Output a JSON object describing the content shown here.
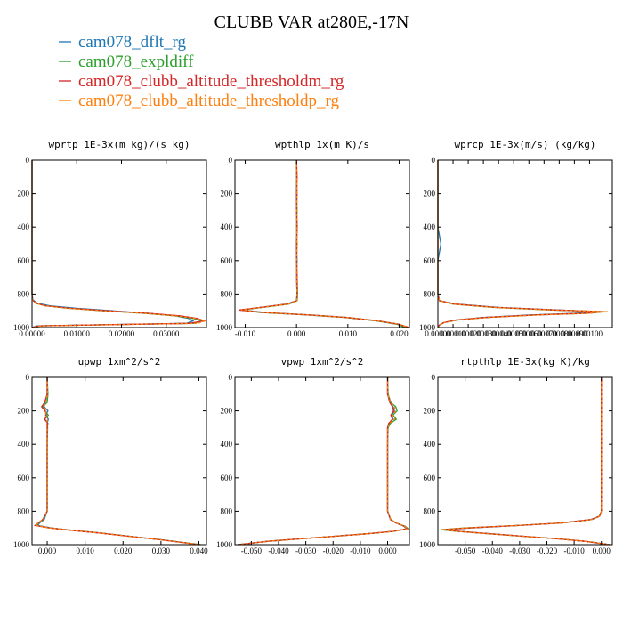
{
  "figure": {
    "title": "CLUBB VAR at280E,-17N",
    "legend": [
      {
        "label": "cam078_dflt_rg",
        "color": "#1f77b4"
      },
      {
        "label": "cam078_expldiff",
        "color": "#2ca02c"
      },
      {
        "label": "cam078_clubb_altitude_thresholdm_rg",
        "color": "#d62728"
      },
      {
        "label": "cam078_clubb_altitude_thresholdp_rg",
        "color": "#ff7f0e"
      }
    ]
  },
  "chart_data": [
    {
      "type": "line",
      "title": "wprtp  1E-3x(m kg)/(s kg)",
      "xlim": [
        0,
        0.039
      ],
      "ylim": [
        1000,
        0
      ],
      "xticks": [
        0,
        0.01,
        0.02,
        0.03
      ],
      "xtick_labels": [
        "0.00000",
        "0.01000",
        "0.02000",
        "0.03000"
      ],
      "yticks": [
        0,
        200,
        400,
        600,
        800,
        1000
      ],
      "ytick_labels": [
        "0",
        "200",
        "400",
        "600",
        "800",
        "1000"
      ],
      "y": [
        0,
        200,
        400,
        600,
        800,
        835,
        855,
        870,
        885,
        900,
        915,
        930,
        945,
        960,
        975,
        990,
        1000
      ],
      "series": [
        {
          "name": "cam078_dflt_rg",
          "values": [
            0,
            0,
            0,
            0,
            0,
            0.0002,
            0.0012,
            0.004,
            0.01,
            0.018,
            0.026,
            0.032,
            0.035,
            0.036,
            0.0345,
            0.001,
            0
          ]
        },
        {
          "name": "cam078_expldiff",
          "values": [
            0,
            0,
            0,
            0,
            0,
            0.0001,
            0.0008,
            0.003,
            0.008,
            0.016,
            0.025,
            0.032,
            0.036,
            0.038,
            0.036,
            0.002,
            0
          ]
        },
        {
          "name": "cam078_clubb_altitude_thresholdm_rg",
          "values": [
            0,
            0,
            0,
            0,
            0,
            0.0001,
            0.0009,
            0.003,
            0.0085,
            0.017,
            0.026,
            0.033,
            0.037,
            0.0385,
            0.035,
            0.0015,
            0
          ]
        },
        {
          "name": "cam078_clubb_altitude_thresholdp_rg",
          "values": [
            0,
            0,
            0,
            0,
            0,
            0.0001,
            0.0008,
            0.0028,
            0.008,
            0.016,
            0.025,
            0.032,
            0.0365,
            0.0388,
            0.037,
            0.002,
            0
          ]
        }
      ]
    },
    {
      "type": "line",
      "title": "wpthlp  1x(m K)/s",
      "xlim": [
        -0.012,
        0.022
      ],
      "ylim": [
        1000,
        0
      ],
      "xticks": [
        -0.01,
        0,
        0.01,
        0.02
      ],
      "xtick_labels": [
        "-0.010",
        "0.000",
        "0.010",
        "0.020"
      ],
      "yticks": [
        0,
        200,
        400,
        600,
        800,
        1000
      ],
      "ytick_labels": [
        "0",
        "200",
        "400",
        "600",
        "800",
        "1000"
      ],
      "y": [
        0,
        100,
        200,
        300,
        400,
        500,
        600,
        700,
        800,
        840,
        860,
        880,
        895,
        910,
        925,
        940,
        960,
        980,
        1000
      ],
      "series": [
        {
          "name": "cam078_dflt_rg",
          "values": [
            0,
            0,
            0.0001,
            0,
            0.0001,
            0,
            0.0001,
            0,
            0.0001,
            0,
            -0.002,
            -0.007,
            -0.0105,
            -0.006,
            0.003,
            0.01,
            0.016,
            0.02,
            0.0215
          ]
        },
        {
          "name": "cam078_expldiff",
          "values": [
            0,
            0,
            0,
            0.0001,
            0,
            0.0001,
            0,
            0.0001,
            0.0002,
            0.0001,
            -0.0015,
            -0.0065,
            -0.011,
            -0.007,
            0.002,
            0.0095,
            0.0155,
            0.0195,
            0.0212
          ]
        },
        {
          "name": "cam078_clubb_altitude_thresholdm_rg",
          "values": [
            0,
            0.0001,
            0,
            0,
            0.0001,
            0,
            0,
            0.0001,
            0.0001,
            0,
            -0.0018,
            -0.007,
            -0.0112,
            -0.0065,
            0.0025,
            0.0098,
            0.0158,
            0.0198,
            0.022
          ]
        },
        {
          "name": "cam078_clubb_altitude_thresholdp_rg",
          "values": [
            0,
            0,
            0.0001,
            0,
            0,
            0.0001,
            0,
            0,
            0.0001,
            0,
            -0.0016,
            -0.0068,
            -0.0108,
            -0.0062,
            0.0028,
            0.01,
            0.016,
            0.02,
            0.0218
          ]
        }
      ]
    },
    {
      "type": "line",
      "title": "wprcp  1E-3x(m/s) (kg/kg)",
      "xlim": [
        0,
        0.00115
      ],
      "ylim": [
        1000,
        0
      ],
      "xticks": [
        0,
        0.0001,
        0.0002,
        0.0003,
        0.0004,
        0.0005,
        0.0006,
        0.0007,
        0.0008,
        0.0009,
        0.001
      ],
      "xtick_labels": [
        "0.00000",
        "0.00010",
        "0.00020",
        "0.00030",
        "0.00040",
        "0.00050",
        "0.00060",
        "0.00070",
        "0.00080",
        "0.00090",
        "0.00100"
      ],
      "yticks": [
        0,
        200,
        400,
        600,
        800,
        1000
      ],
      "ytick_labels": [
        "0",
        "200",
        "400",
        "600",
        "800",
        "1000"
      ],
      "y": [
        0,
        200,
        400,
        500,
        600,
        800,
        840,
        860,
        880,
        895,
        905,
        915,
        925,
        940,
        955,
        970,
        985,
        1000
      ],
      "series": [
        {
          "name": "cam078_dflt_rg",
          "values": [
            0,
            0,
            0,
            2e-05,
            0,
            0,
            1e-05,
            0.00012,
            0.0004,
            0.0008,
            0.00105,
            0.0009,
            0.0006,
            0.0003,
            0.00012,
            4e-05,
            1e-05,
            0
          ]
        },
        {
          "name": "cam078_expldiff",
          "values": [
            0,
            0,
            0,
            0,
            0,
            0,
            1e-05,
            0.0001,
            0.00036,
            0.00075,
            0.0011,
            0.00098,
            0.00065,
            0.00032,
            0.00013,
            4e-05,
            1e-05,
            0
          ]
        },
        {
          "name": "cam078_clubb_altitude_thresholdm_rg",
          "values": [
            0,
            0,
            0,
            0,
            0,
            0,
            1e-05,
            0.00011,
            0.00038,
            0.00078,
            0.00108,
            0.00096,
            0.00063,
            0.00031,
            0.00012,
            4e-05,
            1e-05,
            0
          ]
        },
        {
          "name": "cam078_clubb_altitude_thresholdp_rg",
          "values": [
            0,
            0,
            0,
            0,
            0,
            0,
            1e-05,
            0.0001,
            0.00037,
            0.00077,
            0.00112,
            0.001,
            0.00066,
            0.00033,
            0.00013,
            4e-05,
            1e-05,
            0
          ]
        }
      ]
    },
    {
      "type": "line",
      "title": "upwp  1xm^2/s^2",
      "xlim": [
        -0.004,
        0.042
      ],
      "ylim": [
        1000,
        0
      ],
      "xticks": [
        0,
        0.01,
        0.02,
        0.03,
        0.04
      ],
      "xtick_labels": [
        "0.000",
        "0.010",
        "0.020",
        "0.030",
        "0.040"
      ],
      "yticks": [
        0,
        200,
        400,
        600,
        800,
        1000
      ],
      "ytick_labels": [
        "0",
        "200",
        "400",
        "600",
        "800",
        "1000"
      ],
      "y": [
        0,
        100,
        150,
        175,
        200,
        225,
        250,
        275,
        300,
        400,
        600,
        800,
        850,
        870,
        885,
        900,
        915,
        930,
        950,
        970,
        990,
        1000
      ],
      "series": [
        {
          "name": "cam078_dflt_rg",
          "values": [
            0,
            0,
            -0.0005,
            -0.0008,
            0.0002,
            -0.0004,
            0.0003,
            0,
            0.0001,
            0,
            0,
            0,
            -0.0008,
            -0.002,
            -0.0025,
            0.001,
            0.007,
            0.014,
            0.022,
            0.03,
            0.037,
            0.0405
          ]
        },
        {
          "name": "cam078_expldiff",
          "values": [
            0,
            0.0002,
            0,
            -0.0012,
            -0.0006,
            0.0003,
            -0.0007,
            0.0002,
            0,
            0,
            0,
            0,
            -0.001,
            -0.0022,
            -0.003,
            0.0008,
            0.0068,
            0.0138,
            0.0218,
            0.0298,
            0.0368,
            0.0402
          ]
        },
        {
          "name": "cam078_clubb_altitude_thresholdm_rg",
          "values": [
            0,
            0,
            -0.0007,
            -0.0015,
            -0.0005,
            -0.0002,
            -0.0006,
            0.0001,
            0,
            0,
            0,
            0,
            -0.0012,
            -0.0024,
            -0.0032,
            0.0006,
            0.0066,
            0.0136,
            0.0216,
            0.0296,
            0.0366,
            0.04
          ]
        },
        {
          "name": "cam078_clubb_altitude_thresholdp_rg",
          "values": [
            0,
            0.0001,
            -0.0004,
            -0.0009,
            -0.0002,
            -0.0005,
            0.0001,
            -0.0002,
            0,
            0,
            0,
            0,
            -0.0011,
            -0.0023,
            -0.0031,
            0.0007,
            0.0067,
            0.0137,
            0.0217,
            0.0297,
            0.0367,
            0.0403
          ]
        }
      ]
    },
    {
      "type": "line",
      "title": "vpwp  1xm^2/s^2",
      "xlim": [
        -0.056,
        0.008
      ],
      "ylim": [
        1000,
        0
      ],
      "xticks": [
        -0.05,
        -0.04,
        -0.03,
        -0.02,
        -0.01,
        0
      ],
      "xtick_labels": [
        "-0.050",
        "-0.040",
        "-0.030",
        "-0.020",
        "-0.010",
        "0.000"
      ],
      "yticks": [
        0,
        200,
        400,
        600,
        800,
        1000
      ],
      "ytick_labels": [
        "0",
        "200",
        "400",
        "600",
        "800",
        "1000"
      ],
      "y": [
        0,
        100,
        150,
        175,
        200,
        225,
        250,
        275,
        300,
        400,
        600,
        800,
        850,
        870,
        890,
        905,
        920,
        935,
        950,
        965,
        980,
        1000
      ],
      "series": [
        {
          "name": "cam078_dflt_rg",
          "values": [
            0,
            0,
            0.001,
            0.002,
            0.0025,
            0.0015,
            0.002,
            0.0005,
            0,
            0,
            0,
            0,
            0.001,
            0.003,
            0.006,
            0.007,
            0.002,
            -0.008,
            -0.02,
            -0.032,
            -0.044,
            -0.055
          ]
        },
        {
          "name": "cam078_expldiff",
          "values": [
            0,
            0.0002,
            0.0012,
            0.003,
            0.0035,
            0.002,
            0.0032,
            0.001,
            0.0002,
            0,
            0,
            0,
            0.0012,
            0.0033,
            0.0065,
            0.0075,
            0.0022,
            -0.0078,
            -0.0198,
            -0.0318,
            -0.0438,
            -0.0548
          ]
        },
        {
          "name": "cam078_clubb_altitude_thresholdm_rg",
          "values": [
            0,
            0,
            0.0008,
            0.0018,
            0.0022,
            0.0012,
            0.0018,
            0.0004,
            0,
            0,
            0,
            0,
            0.0011,
            0.0031,
            0.0062,
            0.0072,
            0.0021,
            -0.0079,
            -0.0199,
            -0.0319,
            -0.0439,
            -0.0549
          ]
        },
        {
          "name": "cam078_clubb_altitude_thresholdp_rg",
          "values": [
            0,
            0.0001,
            0.0011,
            0.0024,
            0.003,
            0.0018,
            0.0026,
            0.0007,
            0.0001,
            0,
            0,
            0,
            0.0011,
            0.0032,
            0.0063,
            0.0074,
            0.0022,
            -0.0078,
            -0.0198,
            -0.0318,
            -0.0438,
            -0.0548
          ]
        }
      ]
    },
    {
      "type": "line",
      "title": "rtpthlp  1E-3x(kg K)/kg",
      "xlim": [
        -0.06,
        0.004
      ],
      "ylim": [
        1000,
        0
      ],
      "xticks": [
        -0.05,
        -0.04,
        -0.03,
        -0.02,
        -0.01,
        0
      ],
      "xtick_labels": [
        "-0.050",
        "-0.040",
        "-0.030",
        "-0.020",
        "-0.010",
        "0.000"
      ],
      "yticks": [
        0,
        200,
        400,
        600,
        800,
        1000
      ],
      "ytick_labels": [
        "0",
        "200",
        "400",
        "600",
        "800",
        "1000"
      ],
      "y": [
        0,
        200,
        400,
        600,
        800,
        830,
        850,
        870,
        885,
        900,
        910,
        920,
        935,
        950,
        965,
        980,
        1000
      ],
      "series": [
        {
          "name": "cam078_dflt_rg",
          "values": [
            0,
            0,
            0,
            0,
            0,
            -0.0008,
            -0.004,
            -0.015,
            -0.03,
            -0.048,
            -0.057,
            -0.052,
            -0.04,
            -0.028,
            -0.016,
            -0.006,
            0.003
          ]
        },
        {
          "name": "cam078_expldiff",
          "values": [
            0,
            0,
            0,
            0,
            0,
            -0.0006,
            -0.0035,
            -0.0145,
            -0.031,
            -0.05,
            -0.059,
            -0.053,
            -0.041,
            -0.0285,
            -0.0162,
            -0.0061,
            0.003
          ]
        },
        {
          "name": "cam078_clubb_altitude_thresholdm_rg",
          "values": [
            0,
            0,
            0,
            0,
            0,
            -0.0007,
            -0.0038,
            -0.0148,
            -0.0305,
            -0.049,
            -0.058,
            -0.0525,
            -0.0405,
            -0.0282,
            -0.0161,
            -0.006,
            0.003
          ]
        },
        {
          "name": "cam078_clubb_altitude_thresholdp_rg",
          "values": [
            0,
            0,
            0,
            0,
            0,
            -0.0006,
            -0.0036,
            -0.0146,
            -0.0308,
            -0.0495,
            -0.0585,
            -0.0528,
            -0.0408,
            -0.0284,
            -0.0162,
            -0.006,
            0.003
          ]
        }
      ]
    }
  ]
}
